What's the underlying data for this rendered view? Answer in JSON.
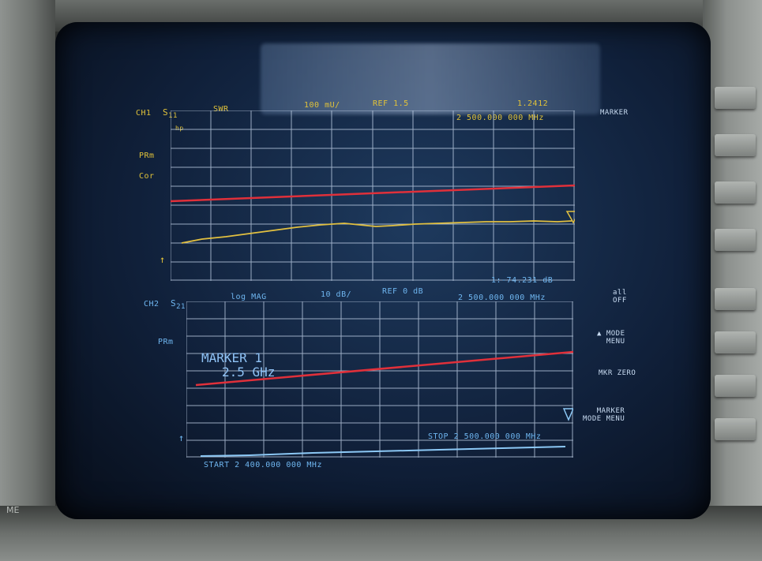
{
  "ch1": {
    "label": "CH1",
    "param": "S11",
    "param_base": "S",
    "param_sub": "11",
    "format": "SWR",
    "scale": "100 mU/",
    "ref": "REF 1.5",
    "marker_value": "1.2412",
    "marker_freq": "2 500.000 000 MHz",
    "side_labels": [
      "PRm",
      "Cor"
    ]
  },
  "ch2": {
    "label": "CH2",
    "param": "S21",
    "param_base": "S",
    "param_sub": "21",
    "format": "log MAG",
    "scale": "10 dB/",
    "ref": "REF 0 dB",
    "marker_value": "1:-74.231 dB",
    "marker_freq": "2 500.000 000 MHz",
    "side_labels": [
      "PRm"
    ],
    "marker_note_line1": "MARKER 1",
    "marker_note_line2": "2.5 GHz"
  },
  "sweep": {
    "start": "START 2 400.000 000 MHz",
    "stop": "STOP 2 500.000 000 MHz"
  },
  "softkeys": {
    "title": "MARKER",
    "all_off": "all\nOFF",
    "mode_menu": "▲ MODE\nMENU",
    "mkr_zero": "MKR ZERO",
    "marker_mode_menu": "MARKER\nMODE MENU"
  },
  "bezel_label": "ME",
  "colors": {
    "limit_line": "#e0303a",
    "trace_ch1": "#e2c040",
    "trace_ch2": "#8cc8f5",
    "grid": "#c8d8ee"
  }
}
